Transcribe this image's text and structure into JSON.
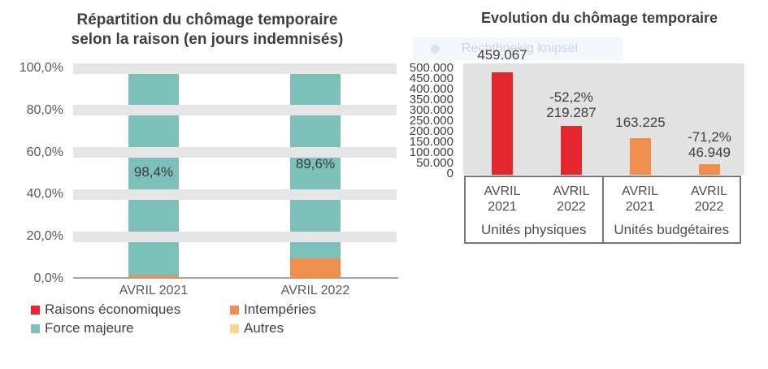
{
  "watermark": {
    "label": "Rechthoekig knipsel"
  },
  "colors": {
    "red": "#e4262e",
    "orange": "#ef8e4e",
    "teal": "#7dc0ba",
    "yellow": "#f9d88d",
    "grid_band": "#e5e5e5",
    "plot_background": "#e2e2e2",
    "axis_line": "#a6a6a6",
    "title_text": "#3f3f3f",
    "tick_text": "#595959"
  },
  "chart_data": [
    {
      "type": "bar",
      "stacked": true,
      "title": "Répartition du chômage temporaire selon la raison (en jours indemnisés)",
      "title_lines": [
        "Répartition du chômage temporaire",
        "selon la raison (en jours indemnisés)"
      ],
      "categories": [
        "AVRIL 2021",
        "AVRIL 2022"
      ],
      "series": [
        {
          "name": "Raisons économiques",
          "color": "#e4262e",
          "values": [
            0.0,
            0.0
          ]
        },
        {
          "name": "Intempéries",
          "color": "#ef8e4e",
          "values": [
            1.0,
            9.4
          ]
        },
        {
          "name": "Force majeure",
          "color": "#7dc0ba",
          "values": [
            98.4,
            89.6
          ]
        },
        {
          "name": "Autres",
          "color": "#f9d88d",
          "values": [
            0.6,
            1.0
          ]
        }
      ],
      "segment_labels": [
        "98,4%",
        "89,6%"
      ],
      "y_ticks": [
        "100,0%",
        "80,0%",
        "60,0%",
        "40,0%",
        "20,0%",
        "0,0%"
      ],
      "ylim": [
        0,
        100
      ],
      "grid": "thick horizontal bands at each 20%",
      "legend_position": "bottom"
    },
    {
      "type": "bar",
      "title": "Evolution du chômage temporaire",
      "y_ticks": [
        "500.000",
        "450.000",
        "400.000",
        "350.000",
        "300.000",
        "250.000",
        "200.000",
        "150.000",
        "100.000",
        "50.000",
        "0"
      ],
      "ylim": [
        0,
        500000
      ],
      "grid": "off",
      "plot_background": "#e2e2e2",
      "groups": [
        {
          "name": "Unités physiques",
          "color": "#e4262e",
          "bars": [
            {
              "category_lines": [
                "AVRIL",
                "2021"
              ],
              "value": 459067,
              "value_label": "459.067"
            },
            {
              "category_lines": [
                "AVRIL",
                "2022"
              ],
              "value": 219287,
              "value_label": "219.287",
              "change_label": "-52,2%"
            }
          ]
        },
        {
          "name": "Unités budgétaires",
          "color": "#ef8e4e",
          "bars": [
            {
              "category_lines": [
                "AVRIL",
                "2021"
              ],
              "value": 163225,
              "value_label": "163.225"
            },
            {
              "category_lines": [
                "AVRIL",
                "2022"
              ],
              "value": 46949,
              "value_label": "46.949",
              "change_label": "-71,2%"
            }
          ]
        }
      ]
    }
  ]
}
